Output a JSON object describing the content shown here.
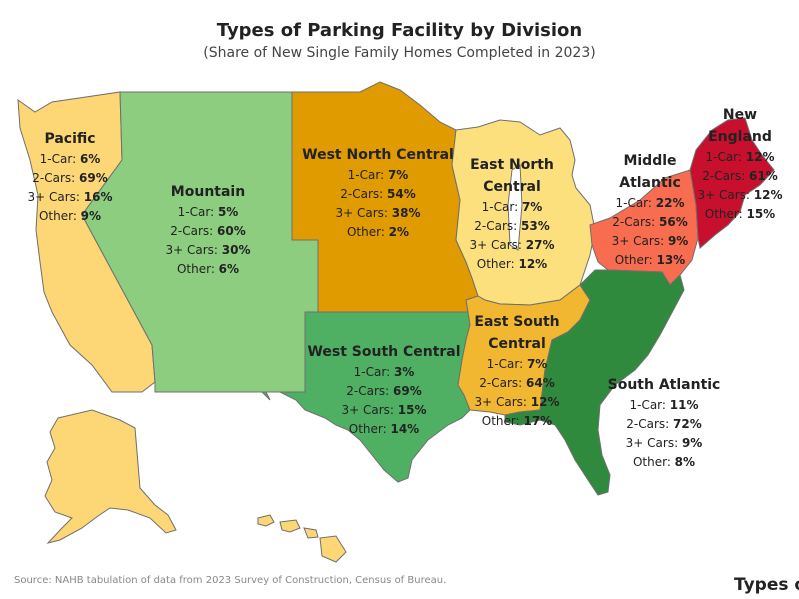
{
  "title": "Types of Parking Facility by Division",
  "subtitle": "(Share of New Single Family Homes Completed in 2023)",
  "source": "Source: NAHB tabulation of data from 2023 Survey of Construction, Census of Bureau.",
  "footer_cut": "Types o",
  "colors": {
    "pacific": "#fdd776",
    "mountain": "#8ccd7f",
    "west_north_central": "#e09b00",
    "east_north_central": "#fde07e",
    "middle_atlantic": "#f86c4f",
    "new_england": "#c8102e",
    "east_south_central": "#f2b730",
    "west_south_central": "#4fb064",
    "south_atlantic": "#2f8a3e",
    "border": "#6f6f6f"
  },
  "regions": {
    "pacific": {
      "name": "Pacific",
      "rows": [
        {
          "label": "1-Car: ",
          "value": "6%"
        },
        {
          "label": "2-Cars: ",
          "value": "69%"
        },
        {
          "label": "3+ Cars: ",
          "value": "16%"
        },
        {
          "label": "Other: ",
          "value": "9%"
        }
      ]
    },
    "mountain": {
      "name": "Mountain",
      "rows": [
        {
          "label": "1-Car: ",
          "value": "5%"
        },
        {
          "label": "2-Cars: ",
          "value": "60%"
        },
        {
          "label": "3+ Cars: ",
          "value": "30%"
        },
        {
          "label": "Other: ",
          "value": "6%"
        }
      ]
    },
    "west_north_central": {
      "name": "West North Central",
      "rows": [
        {
          "label": "1-Car: ",
          "value": "7%"
        },
        {
          "label": "2-Cars: ",
          "value": "54%"
        },
        {
          "label": "3+ Cars: ",
          "value": "38%"
        },
        {
          "label": "Other: ",
          "value": "2%"
        }
      ]
    },
    "east_north_central": {
      "name_line1": "East North",
      "name_line2": "Central",
      "rows": [
        {
          "label": "1-Car: ",
          "value": "7%"
        },
        {
          "label": "2-Cars: ",
          "value": "53%"
        },
        {
          "label": "3+ Cars: ",
          "value": "27%"
        },
        {
          "label": "Other: ",
          "value": "12%"
        }
      ]
    },
    "middle_atlantic": {
      "name_line1": "Middle",
      "name_line2": "Atlantic",
      "rows": [
        {
          "label": "1-Car: ",
          "value": "22%"
        },
        {
          "label": "2-Cars: ",
          "value": "56%"
        },
        {
          "label": "3+ Cars: ",
          "value": "9%"
        },
        {
          "label": "Other: ",
          "value": "13%"
        }
      ]
    },
    "new_england": {
      "name_line1": "New",
      "name_line2": "England",
      "rows": [
        {
          "label": "1-Car: ",
          "value": "12%"
        },
        {
          "label": "2-Cars: ",
          "value": "61%"
        },
        {
          "label": "3+ Cars: ",
          "value": "12%"
        },
        {
          "label": "Other: ",
          "value": "15%"
        }
      ]
    },
    "west_south_central": {
      "name": "West South Central",
      "rows": [
        {
          "label": "1-Car: ",
          "value": "3%"
        },
        {
          "label": "2-Cars: ",
          "value": "69%"
        },
        {
          "label": "3+ Cars: ",
          "value": "15%"
        },
        {
          "label": "Other: ",
          "value": "14%"
        }
      ]
    },
    "east_south_central": {
      "name_line1": "East South",
      "name_line2": "Central",
      "rows": [
        {
          "label": "1-Car: ",
          "value": "7%"
        },
        {
          "label": "2-Cars: ",
          "value": "64%"
        },
        {
          "label": "3+ Cars: ",
          "value": "12%"
        },
        {
          "label": "Other: ",
          "value": "17%"
        }
      ]
    },
    "south_atlantic": {
      "name": "South Atlantic",
      "rows": [
        {
          "label": "1-Car: ",
          "value": "11%"
        },
        {
          "label": "2-Cars: ",
          "value": "72%"
        },
        {
          "label": "3+ Cars: ",
          "value": "9%"
        },
        {
          "label": "Other: ",
          "value": "8%"
        }
      ]
    }
  }
}
